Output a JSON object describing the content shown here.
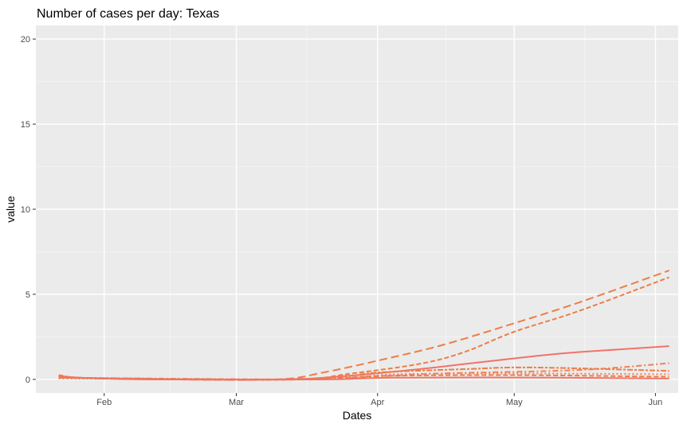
{
  "chart_data": {
    "type": "line",
    "title": "Number of cases per day: Texas",
    "xlabel": "Dates",
    "ylabel": "value",
    "x_ticks": [
      "Feb",
      "Mar",
      "Apr",
      "May",
      "Jun"
    ],
    "y_ticks": [
      "0",
      "5",
      "10",
      "15",
      "20"
    ],
    "ylim": [
      -0.8,
      20.8
    ],
    "xlim": [
      "2020-01-17",
      "2020-06-06"
    ],
    "grid": true,
    "legend": "none",
    "colors": {
      "panel": "#ebebeb",
      "grid_major": "#ffffff",
      "grid_minor": "#f5f5f5",
      "line_orange": "#ee7d45",
      "line_salmon": "#f0736a",
      "line_coral": "#f2805a"
    },
    "series": [
      {
        "color": "#ee7d45",
        "dash": "long",
        "points": [
          [
            "2020-01-22",
            0.1
          ],
          [
            "2020-02-15",
            0.0
          ],
          [
            "2020-03-10",
            0.0
          ],
          [
            "2020-03-20",
            0.4
          ],
          [
            "2020-04-01",
            1.1
          ],
          [
            "2020-04-15",
            2.0
          ],
          [
            "2020-05-01",
            3.3
          ],
          [
            "2020-05-15",
            4.5
          ],
          [
            "2020-06-04",
            6.4
          ]
        ]
      },
      {
        "color": "#ee7d45",
        "dash": "medium",
        "points": [
          [
            "2020-01-22",
            0.1
          ],
          [
            "2020-02-15",
            0.0
          ],
          [
            "2020-03-15",
            0.0
          ],
          [
            "2020-03-25",
            0.3
          ],
          [
            "2020-04-10",
            0.9
          ],
          [
            "2020-04-20",
            1.6
          ],
          [
            "2020-05-01",
            2.8
          ],
          [
            "2020-05-15",
            4.0
          ],
          [
            "2020-06-04",
            6.0
          ]
        ]
      },
      {
        "color": "#f0736a",
        "dash": "solid",
        "points": [
          [
            "2020-01-22",
            0.2
          ],
          [
            "2020-02-01",
            0.05
          ],
          [
            "2020-03-10",
            0.0
          ],
          [
            "2020-03-25",
            0.2
          ],
          [
            "2020-04-10",
            0.6
          ],
          [
            "2020-04-20",
            0.9
          ],
          [
            "2020-05-05",
            1.35
          ],
          [
            "2020-05-15",
            1.6
          ],
          [
            "2020-06-04",
            1.95
          ]
        ]
      },
      {
        "color": "#f2805a",
        "dash": "dotdash",
        "points": [
          [
            "2020-01-22",
            0.1
          ],
          [
            "2020-03-15",
            0.0
          ],
          [
            "2020-03-30",
            0.15
          ],
          [
            "2020-04-15",
            0.35
          ],
          [
            "2020-05-15",
            0.55
          ],
          [
            "2020-06-04",
            0.95
          ]
        ]
      },
      {
        "color": "#ee7d45",
        "dash": "twodash",
        "points": [
          [
            "2020-01-22",
            0.1
          ],
          [
            "2020-03-15",
            0.0
          ],
          [
            "2020-04-01",
            0.4
          ],
          [
            "2020-04-20",
            0.6
          ],
          [
            "2020-05-05",
            0.7
          ],
          [
            "2020-06-04",
            0.5
          ]
        ]
      },
      {
        "color": "#f2805a",
        "dash": "dotted",
        "points": [
          [
            "2020-01-22",
            0.05
          ],
          [
            "2020-03-18",
            0.0
          ],
          [
            "2020-04-05",
            0.3
          ],
          [
            "2020-05-01",
            0.35
          ],
          [
            "2020-06-04",
            0.3
          ]
        ]
      },
      {
        "color": "#ee7d45",
        "dash": "medium",
        "points": [
          [
            "2020-01-22",
            0.25
          ],
          [
            "2020-02-01",
            0.05
          ],
          [
            "2020-03-18",
            0.0
          ],
          [
            "2020-04-01",
            0.2
          ],
          [
            "2020-05-01",
            0.25
          ],
          [
            "2020-06-04",
            0.15
          ]
        ]
      },
      {
        "color": "#f0736a",
        "dash": "solid",
        "points": [
          [
            "2020-01-22",
            0.15
          ],
          [
            "2020-02-10",
            0.0
          ],
          [
            "2020-03-20",
            0.0
          ],
          [
            "2020-04-05",
            0.1
          ],
          [
            "2020-05-10",
            0.1
          ],
          [
            "2020-06-04",
            0.05
          ]
        ]
      }
    ]
  }
}
